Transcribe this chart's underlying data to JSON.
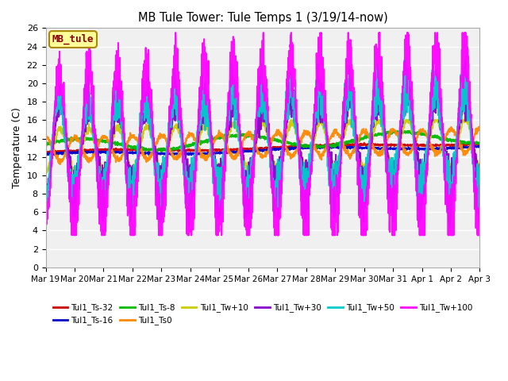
{
  "title": "MB Tule Tower: Tule Temps 1 (3/19/14-now)",
  "ylabel": "Temperature (C)",
  "ylim": [
    0,
    26
  ],
  "yticks": [
    0,
    2,
    4,
    6,
    8,
    10,
    12,
    14,
    16,
    18,
    20,
    22,
    24,
    26
  ],
  "xlabel_dates": [
    "Mar 19",
    "Mar 20",
    "Mar 21",
    "Mar 22",
    "Mar 23",
    "Mar 24",
    "Mar 25",
    "Mar 26",
    "Mar 27",
    "Mar 28",
    "Mar 29",
    "Mar 30",
    "Mar 31",
    "Apr 1",
    "Apr 2",
    "Apr 3"
  ],
  "background_color": "#ffffff",
  "plot_bg_color": "#f0f0f0",
  "station_label": "MB_tule",
  "series": [
    {
      "label": "Tul1_Ts-32",
      "color": "#cc0000",
      "lw": 1.5
    },
    {
      "label": "Tul1_Ts-16",
      "color": "#0000cc",
      "lw": 1.5
    },
    {
      "label": "Tul1_Ts-8",
      "color": "#00bb00",
      "lw": 1.5
    },
    {
      "label": "Tul1_Ts0",
      "color": "#ff8800",
      "lw": 1.5
    },
    {
      "label": "Tul1_Tw+10",
      "color": "#cccc00",
      "lw": 1.5
    },
    {
      "label": "Tul1_Tw+30",
      "color": "#8800cc",
      "lw": 1.5
    },
    {
      "label": "Tul1_Tw+50",
      "color": "#00cccc",
      "lw": 1.5
    },
    {
      "label": "Tul1_Tw+100",
      "color": "#ff00ff",
      "lw": 1.5
    }
  ]
}
